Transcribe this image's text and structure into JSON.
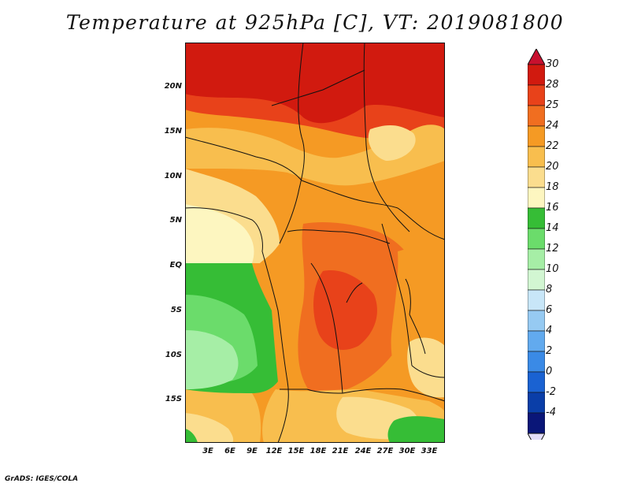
{
  "title": "Temperature at 925hPa [C], VT: 2019081800",
  "footer": "GrADS: IGES/COLA",
  "lat_labels": [
    "20N",
    "15N",
    "10N",
    "5N",
    "EQ",
    "5S",
    "10S",
    "15S"
  ],
  "lon_labels": [
    "3E",
    "6E",
    "9E",
    "12E",
    "15E",
    "18E",
    "21E",
    "24E",
    "27E",
    "30E",
    "33E"
  ],
  "colorbar": {
    "labels": [
      "30",
      "28",
      "25",
      "24",
      "22",
      "20",
      "18",
      "16",
      "14",
      "12",
      "10",
      "8",
      "6",
      "4",
      "2",
      "0",
      "-2",
      "-4"
    ],
    "colors": [
      "#d11a0f",
      "#e8421a",
      "#f06e20",
      "#f59a24",
      "#f8be4e",
      "#fbdd8e",
      "#fdf6c0",
      "#36bd36",
      "#6bdc6b",
      "#a6eea6",
      "#d2f6d2",
      "#c8e6f8",
      "#96caf2",
      "#62aaee",
      "#3a8ae6",
      "#1a62d2",
      "#0a3ea8",
      "#0a1678"
    ],
    "top_arrow_color": "#c8102e",
    "bottom_arrow_color": "#e4defa"
  }
}
